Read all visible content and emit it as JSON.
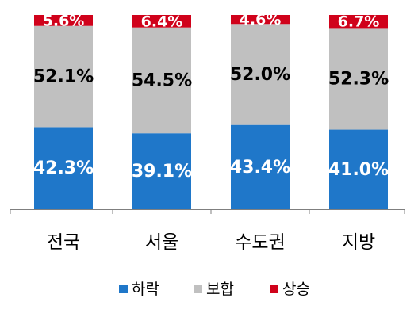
{
  "chart_data": {
    "type": "bar",
    "stacked": true,
    "categories": [
      "전국",
      "서울",
      "수도권",
      "지방"
    ],
    "series": [
      {
        "name": "하락",
        "values": [
          42.3,
          39.1,
          43.4,
          41.0
        ],
        "labels": [
          "42.3%",
          "39.1%",
          "43.4%",
          "41.0%"
        ],
        "color": "#1f77c9",
        "label_color": "#ffffff"
      },
      {
        "name": "보합",
        "values": [
          52.1,
          54.5,
          52.0,
          52.3
        ],
        "labels": [
          "52.1%",
          "54.5%",
          "52.0%",
          "52.3%"
        ],
        "color": "#c0c0c0",
        "label_color": "#000000"
      },
      {
        "name": "상승",
        "values": [
          5.6,
          6.4,
          4.6,
          6.7
        ],
        "labels": [
          "5.6%",
          "6.4%",
          "4.6%",
          "6.7%"
        ],
        "color": "#d0021b",
        "label_color": "#ffffff"
      }
    ],
    "ylim": [
      0,
      100
    ],
    "legend_position": "bottom",
    "grid": false
  }
}
